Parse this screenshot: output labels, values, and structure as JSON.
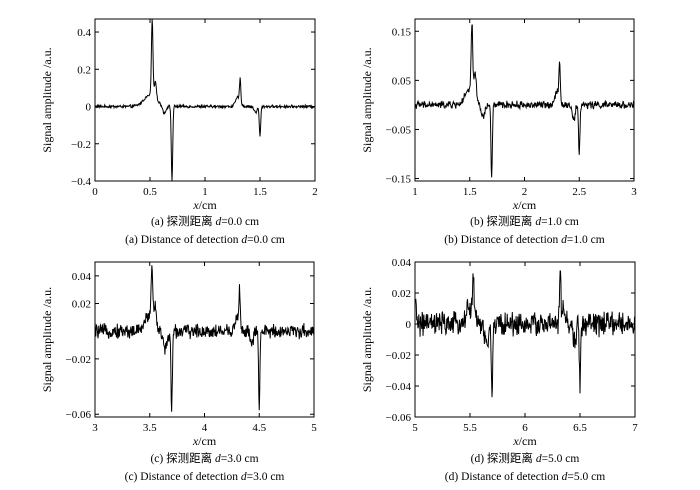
{
  "chart_data": [
    {
      "type": "line",
      "ylabel": "Signal amplitude /a.u.",
      "xlabel_var": "x",
      "xlabel_unit": "/cm",
      "xlim": [
        0,
        2
      ],
      "ylim": [
        -0.4,
        0.47
      ],
      "xticks": [
        0,
        0.5,
        1,
        1.5,
        2
      ],
      "xtick_labels": [
        "0",
        "0.5",
        "1",
        "1.5",
        "2"
      ],
      "yticks": [
        -0.4,
        -0.2,
        0,
        0.2,
        0.4
      ],
      "ytick_labels": [
        "−0.4",
        "−0.2",
        "0",
        "0.2",
        "0.4"
      ],
      "caption_cn_prefix": "(a) 探测距离 ",
      "caption_en_prefix": "(a) Distance of detection ",
      "caption_var": "d",
      "caption_value": "=0.0 cm",
      "noise": 0.006,
      "features": [
        {
          "x": 0.5,
          "amp": 0.06,
          "width": 0.08
        },
        {
          "x": 0.52,
          "amp": 0.41,
          "width": 0.01
        },
        {
          "x": 0.55,
          "amp": 0.1,
          "width": 0.012
        },
        {
          "x": 0.63,
          "amp": -0.04,
          "width": 0.02
        },
        {
          "x": 0.7,
          "amp": -0.4,
          "width": 0.009
        },
        {
          "x": 1.3,
          "amp": 0.05,
          "width": 0.03
        },
        {
          "x": 1.32,
          "amp": 0.12,
          "width": 0.008
        },
        {
          "x": 1.5,
          "amp": -0.16,
          "width": 0.009
        },
        {
          "x": 1.46,
          "amp": -0.03,
          "width": 0.02
        }
      ]
    },
    {
      "type": "line",
      "ylabel": "Signal amplitude /a.u.",
      "xlabel_var": "x",
      "xlabel_unit": "/cm",
      "xlim": [
        1,
        3
      ],
      "ylim": [
        -0.155,
        0.175
      ],
      "xticks": [
        1,
        1.5,
        2,
        2.5,
        3
      ],
      "xtick_labels": [
        "1",
        "1.5",
        "2",
        "2.5",
        "3"
      ],
      "yticks": [
        -0.15,
        -0.05,
        0.05,
        0.15
      ],
      "ytick_labels": [
        "−0.15",
        "−0.05",
        "0.05",
        "0.15"
      ],
      "caption_cn_prefix": "(b) 探测距离 ",
      "caption_en_prefix": "(b) Distance of detection ",
      "caption_var": "d",
      "caption_value": "=1.0 cm",
      "noise": 0.006,
      "features": [
        {
          "x": 1.5,
          "amp": 0.03,
          "width": 0.06
        },
        {
          "x": 1.52,
          "amp": 0.14,
          "width": 0.01
        },
        {
          "x": 1.55,
          "amp": 0.05,
          "width": 0.015
        },
        {
          "x": 1.62,
          "amp": -0.025,
          "width": 0.025
        },
        {
          "x": 1.7,
          "amp": -0.15,
          "width": 0.009
        },
        {
          "x": 2.3,
          "amp": 0.03,
          "width": 0.03
        },
        {
          "x": 2.32,
          "amp": 0.07,
          "width": 0.008
        },
        {
          "x": 2.45,
          "amp": -0.03,
          "width": 0.02
        },
        {
          "x": 2.5,
          "amp": -0.1,
          "width": 0.009
        }
      ]
    },
    {
      "type": "line",
      "ylabel": "Signal amplitude /a.u.",
      "xlabel_var": "x",
      "xlabel_unit": "/cm",
      "xlim": [
        3,
        5
      ],
      "ylim": [
        -0.062,
        0.05
      ],
      "xticks": [
        3,
        3.5,
        4,
        4.5,
        5
      ],
      "xtick_labels": [
        "3",
        "3.5",
        "4",
        "4.5",
        "5"
      ],
      "yticks": [
        -0.06,
        -0.02,
        0.02,
        0.04
      ],
      "ytick_labels": [
        "−0.06",
        "−0.02",
        "0.02",
        "0.04"
      ],
      "caption_cn_prefix": "(c) 探测距离 ",
      "caption_en_prefix": "(c) Distance of detection ",
      "caption_var": "d",
      "caption_value": "=3.0 cm",
      "noise": 0.004,
      "features": [
        {
          "x": 3.5,
          "amp": 0.012,
          "width": 0.06
        },
        {
          "x": 3.52,
          "amp": 0.038,
          "width": 0.01
        },
        {
          "x": 3.55,
          "amp": 0.012,
          "width": 0.015
        },
        {
          "x": 3.7,
          "amp": -0.058,
          "width": 0.009
        },
        {
          "x": 3.64,
          "amp": -0.012,
          "width": 0.03
        },
        {
          "x": 4.3,
          "amp": 0.01,
          "width": 0.03
        },
        {
          "x": 4.32,
          "amp": 0.024,
          "width": 0.008
        },
        {
          "x": 4.43,
          "amp": -0.01,
          "width": 0.02
        },
        {
          "x": 4.5,
          "amp": -0.055,
          "width": 0.009
        }
      ]
    },
    {
      "type": "line",
      "ylabel": "Signal amplitude /a.u.",
      "xlabel_var": "x",
      "xlabel_unit": "/cm",
      "xlim": [
        5,
        7
      ],
      "ylim": [
        -0.06,
        0.04
      ],
      "xticks": [
        5,
        5.5,
        6,
        6.5,
        7
      ],
      "xtick_labels": [
        "5",
        "5.5",
        "6",
        "6.5",
        "7"
      ],
      "yticks": [
        -0.06,
        -0.04,
        -0.02,
        0,
        0.02,
        0.04
      ],
      "ytick_labels": [
        "−0.06",
        "−0.04",
        "−0.02",
        "0",
        "0.02",
        "0.04"
      ],
      "caption_cn_prefix": "(d) 探测距离 ",
      "caption_en_prefix": "(d) Distance of detection ",
      "caption_var": "d",
      "caption_value": "=5.0 cm",
      "noise": 0.006,
      "features": [
        {
          "x": 5.0,
          "amp": 0.012,
          "width": 0.02
        },
        {
          "x": 5.5,
          "amp": 0.01,
          "width": 0.05
        },
        {
          "x": 5.53,
          "amp": 0.024,
          "width": 0.01
        },
        {
          "x": 5.65,
          "amp": -0.012,
          "width": 0.03
        },
        {
          "x": 5.7,
          "amp": -0.05,
          "width": 0.008
        },
        {
          "x": 6.32,
          "amp": 0.034,
          "width": 0.008
        },
        {
          "x": 6.35,
          "amp": 0.01,
          "width": 0.02
        },
        {
          "x": 6.45,
          "amp": -0.012,
          "width": 0.02
        },
        {
          "x": 6.5,
          "amp": -0.04,
          "width": 0.008
        }
      ]
    }
  ]
}
